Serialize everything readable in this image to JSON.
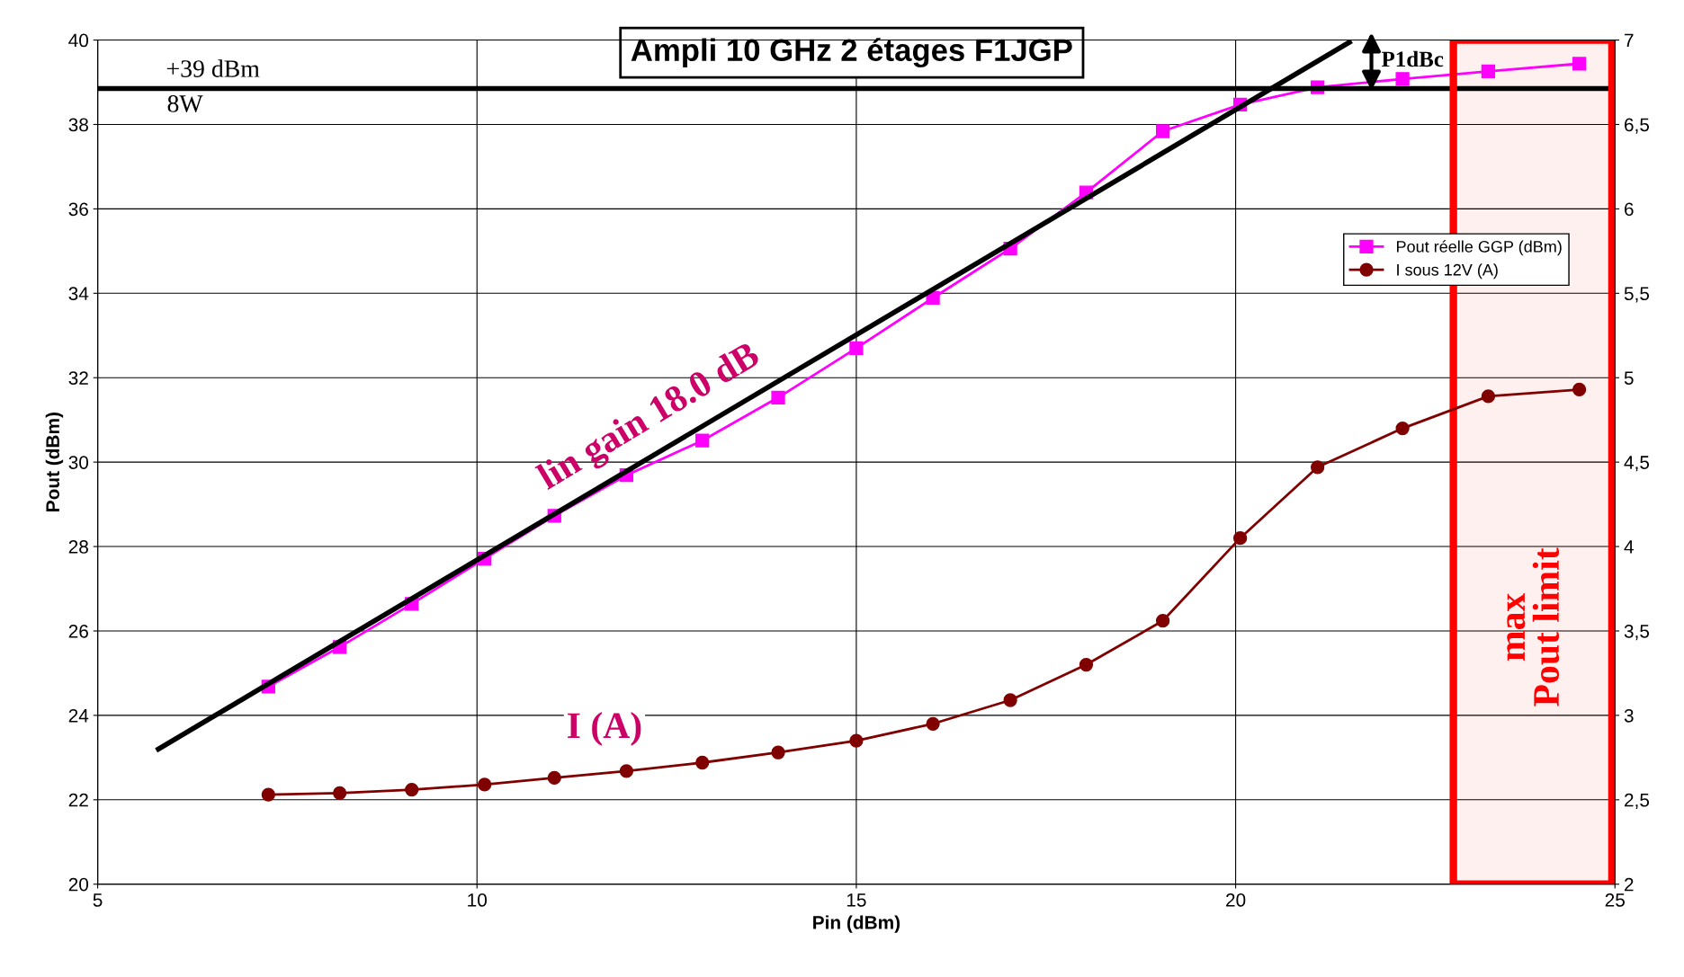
{
  "chart_data": {
    "type": "line",
    "title": "Ampli 10 GHz 2 étages F1JGP",
    "xlabel": "Pin (dBm)",
    "ylabel": "Pout (dBm)",
    "xlim": [
      5,
      25
    ],
    "xticks": [
      5,
      10,
      15,
      20,
      25
    ],
    "ylim": [
      20,
      40
    ],
    "yticks": [
      20,
      22,
      24,
      26,
      28,
      30,
      32,
      34,
      36,
      38,
      40
    ],
    "y2lim": [
      2,
      7
    ],
    "y2ticks": [
      2,
      {
        "value": 2.5,
        "label": "2,5"
      },
      3,
      {
        "value": 3.5,
        "label": "3,5"
      },
      4,
      {
        "value": 4.5,
        "label": "4,5"
      },
      5,
      {
        "value": 5.5,
        "label": "5,5"
      },
      6,
      {
        "value": 6.5,
        "label": "6,5"
      },
      7
    ],
    "x": [
      7.25,
      8.19,
      9.14,
      10.1,
      11.02,
      11.97,
      12.97,
      13.97,
      15.0,
      16.01,
      17.03,
      18.03,
      19.04,
      20.06,
      21.08,
      22.2,
      23.33,
      24.53
    ],
    "series": [
      {
        "name": "Pout réelle GGP (dBm)",
        "color": "#ff00ff",
        "marker": "square",
        "values": [
          24.68,
          25.62,
          26.64,
          27.71,
          28.73,
          29.69,
          30.51,
          31.53,
          32.7,
          33.89,
          35.06,
          36.39,
          37.84,
          38.47,
          38.88,
          39.08,
          39.26,
          39.44
        ]
      },
      {
        "name": "I sous 12V (A)",
        "color": "#800000",
        "marker": "circle",
        "axis": "y2",
        "values": [
          2.53,
          2.54,
          2.56,
          2.59,
          2.63,
          2.67,
          2.72,
          2.78,
          2.85,
          2.95,
          3.09,
          3.3,
          3.56,
          4.05,
          4.47,
          4.7,
          4.89,
          4.93
        ]
      },
      {
        "color": "#000000",
        "marker": "none",
        "x": [
          5.8,
          21.5
        ],
        "values": [
          23.2,
          39.95
        ]
      }
    ],
    "ref_lines": [
      {
        "axis": "y",
        "value": 38.85,
        "label": "+39 dBm",
        "color": "#000000"
      }
    ],
    "bands": [
      {
        "axis": "x",
        "from": 22.87,
        "to": 24.96,
        "label": "max\nPout limit",
        "color": "#ff0000"
      }
    ],
    "annotations": [
      "8W",
      "lin gain 18.0 dB",
      "I (A)",
      "P1dBc"
    ],
    "grid": true,
    "legend": "right"
  }
}
